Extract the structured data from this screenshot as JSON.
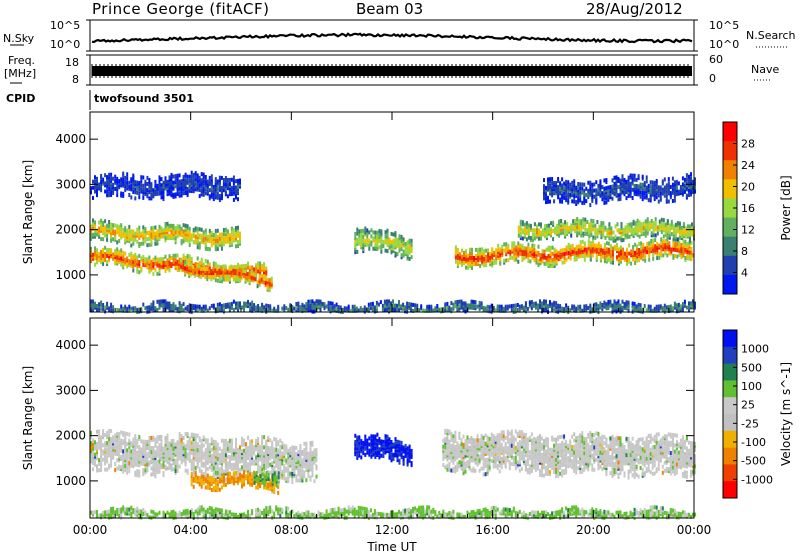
{
  "header": {
    "site": "Prince George (fitACF)",
    "beam": "Beam 03",
    "date": "28/Aug/2012"
  },
  "strips": {
    "nsky_label": "N.Sky",
    "nsky_ticks": [
      "10^5",
      "10^0"
    ],
    "nsearch_label": "N.Search",
    "nsearch_ticks": [
      "10^5",
      "10^0"
    ],
    "freq_label_1": "Freq.",
    "freq_label_2": "[MHz]",
    "freq_ticks": [
      "18",
      "8"
    ],
    "nave_label": "Nave",
    "nave_ticks": [
      "60",
      "0"
    ],
    "cpid_label": "CPID",
    "cpid_value": "twofsound 3501"
  },
  "colors": {
    "power_scale": [
      "#0018f0",
      "#2040b0",
      "#3a8070",
      "#60b060",
      "#98d840",
      "#f0c000",
      "#f08000",
      "#f03000",
      "#ff0000"
    ],
    "velocity_scale": [
      "#ff0000",
      "#f04000",
      "#f08000",
      "#f0b000",
      "#c0c0c0",
      "#c8c8c8",
      "#60c030",
      "#208050",
      "#2040c0",
      "#0010f0"
    ]
  },
  "chart_data": [
    {
      "type": "heatmap",
      "title": "Power",
      "xlabel": "",
      "ylabel": "Slant Range [km]",
      "x_ticks": [
        "00:00",
        "04:00",
        "08:00",
        "12:00",
        "16:00",
        "20:00",
        "00:00"
      ],
      "y_ticks": [
        "1000",
        "2000",
        "3000",
        "4000"
      ],
      "xlim_hours": [
        0,
        24
      ],
      "ylim_km": [
        180,
        4600
      ],
      "colorbar_label": "Power [dB]",
      "colorbar_ticks": [
        "4",
        "8",
        "12",
        "16",
        "20",
        "24",
        "28"
      ],
      "colorbar_range_db": [
        0,
        32
      ],
      "bands": [
        {
          "t": [
            0,
            7
          ],
          "r_start": 1450,
          "r_end": 1050,
          "width": 380,
          "db": 27
        },
        {
          "t": [
            0,
            6
          ],
          "r_start": 2000,
          "r_end": 1850,
          "width": 420,
          "db": 22
        },
        {
          "t": [
            3.5,
            7.2
          ],
          "r_start": 1250,
          "r_end": 900,
          "width": 300,
          "db": 28
        },
        {
          "t": [
            10.5,
            12.8
          ],
          "r_start": 1800,
          "r_end": 1700,
          "width": 500,
          "db": 18
        },
        {
          "t": [
            14.5,
            24
          ],
          "r_start": 1450,
          "r_end": 1600,
          "width": 420,
          "db": 28
        },
        {
          "t": [
            17,
            24
          ],
          "r_start": 2050,
          "r_end": 2050,
          "width": 380,
          "db": 20
        },
        {
          "t": [
            0,
            6
          ],
          "r_start": 3000,
          "r_end": 3000,
          "width": 500,
          "db": 5
        },
        {
          "t": [
            18,
            24
          ],
          "r_start": 2850,
          "r_end": 3000,
          "width": 500,
          "db": 6
        },
        {
          "t": [
            0,
            24
          ],
          "r_start": 300,
          "r_end": 300,
          "width": 250,
          "db": 9
        }
      ]
    },
    {
      "type": "heatmap",
      "title": "Velocity",
      "xlabel": "Time UT",
      "ylabel": "Slant Range [km]",
      "x_ticks": [
        "00:00",
        "04:00",
        "08:00",
        "12:00",
        "16:00",
        "20:00",
        "00:00"
      ],
      "y_ticks": [
        "1000",
        "2000",
        "3000",
        "4000"
      ],
      "xlim_hours": [
        0,
        24
      ],
      "ylim_km": [
        180,
        4600
      ],
      "colorbar_label": "Velocity [m s^-1]",
      "colorbar_ticks": [
        "1000",
        "500",
        "100",
        "25",
        "-25",
        "-100",
        "-500",
        "-1000"
      ],
      "bands": [
        {
          "t": [
            0,
            9
          ],
          "r_start": 1700,
          "r_end": 1500,
          "width": 900,
          "v": 0
        },
        {
          "t": [
            4,
            7.5
          ],
          "r_start": 1100,
          "r_end": 1000,
          "width": 350,
          "v": -250
        },
        {
          "t": [
            6.5,
            7.5
          ],
          "r_start": 1150,
          "r_end": 1150,
          "width": 300,
          "v": 80
        },
        {
          "t": [
            10.5,
            12.8
          ],
          "r_start": 1800,
          "r_end": 1700,
          "width": 500,
          "v": 600
        },
        {
          "t": [
            14,
            24
          ],
          "r_start": 1700,
          "r_end": 1600,
          "width": 900,
          "v": 0
        },
        {
          "t": [
            0,
            24
          ],
          "r_start": 300,
          "r_end": 300,
          "width": 250,
          "v": 50
        }
      ]
    }
  ]
}
